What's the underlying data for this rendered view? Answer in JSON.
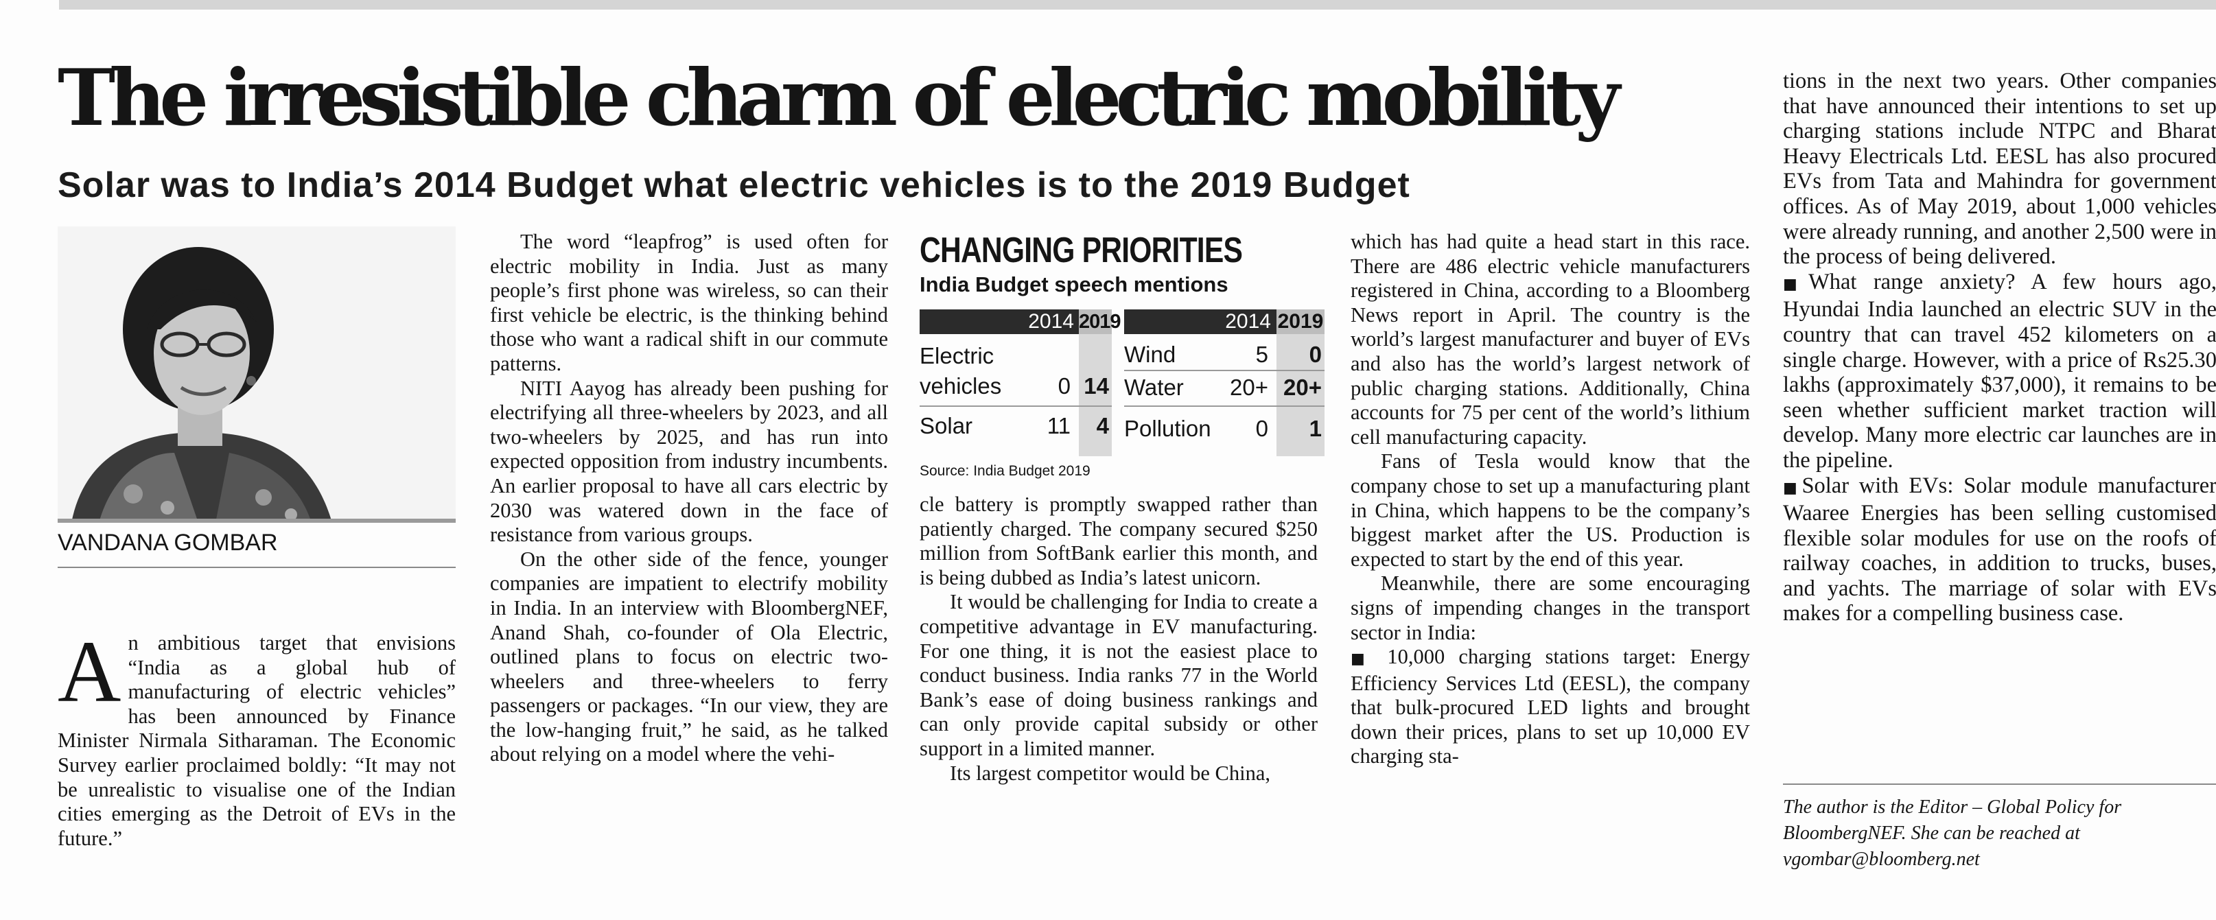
{
  "headline": "The irresistible charm of electric mobility",
  "subheadline": "Solar was to India’s 2014 Budget what electric vehicles is to the 2019 Budget",
  "byline": "VANDANA GOMBAR",
  "col1": {
    "dropcap": "A",
    "text": "n ambitious target that envisions “India as a global hub of manufacturing of electric vehicles” has been announced by Finance Minister Nirmala Sitharaman. The Economic Survey earlier proclaimed boldly: “It may not be unrealistic to visualise one of the Indian cities emerging as the Detroit of EVs in the future.”"
  },
  "col2": {
    "p1": "The word “leapfrog” is used often for electric mobility in India. Just as many people’s first phone was wireless, so can their first vehicle be electric, is the thinking behind those who want a radical shift in our commute patterns.",
    "p2": "NITI Aayog has already been pushing for electrifying all three-wheelers by 2023, and all two-wheelers by 2025, and has run into expected opposition from industry incumbents. An earlier proposal to have all cars electric by 2030 was watered down in the face of resistance from various groups.",
    "p3": "On the other side of the fence, younger companies are impatient to electrify mobility in India. In an interview with BloombergNEF, Anand Shah, co-founder of Ola Electric, outlined plans to focus on electric two-wheelers and three-wheelers to ferry passengers or packages. “In our view, they are the low-hanging fruit,” he said, as he talked about relying on a model where the vehi-"
  },
  "infobox": {
    "title": "CHANGING PRIORITIES",
    "subtitle": "India Budget speech mentions",
    "year1": "2014",
    "year2": "2019",
    "left_rows": [
      {
        "label1": "Electric",
        "label2": "vehicles",
        "v2014": "0",
        "v2019": "14"
      },
      {
        "label1": "Solar",
        "v2014": "11",
        "v2019": "4"
      }
    ],
    "right_rows": [
      {
        "label": "Wind",
        "v2014": "5",
        "v2019": "0"
      },
      {
        "label": "Water",
        "v2014": "20+",
        "v2019": "20+"
      },
      {
        "label": "Pollution",
        "v2014": "0",
        "v2019": "1"
      }
    ],
    "source": "Source: India Budget 2019"
  },
  "col3": {
    "p1": "cle battery is promptly swapped rather than patiently charged. The company secured $250 million from SoftBank earlier this month, and is being dubbed as India’s latest unicorn.",
    "p2": "It would be challenging for India to create a competitive advantage in EV manufacturing. For one thing, it is not the easiest place to conduct business. India ranks 77 in the World Bank’s ease of doing business rankings and can only provide capital subsidy or other support in a limited manner.",
    "p3": "Its largest competitor would be China,"
  },
  "col4": {
    "p1": "which has had quite a head start in this race. There are 486 electric vehicle manufacturers registered in China, according to a Bloomberg News report in April. The country is the world’s largest manufacturer and buyer of EVs and also has the world’s largest network of public charging stations. Additionally, China accounts for 75 per cent of the world’s lithium cell manufacturing capacity.",
    "p2": "Fans of Tesla would know that the company chose to set up a manufacturing plant in China, which happens to be the company’s biggest market after the US. Production is expected to start by the end of this year.",
    "p3": "Meanwhile, there are some encouraging signs of impending changes in the transport sector in India:",
    "p4": "10,000 charging stations target: Energy Efficiency Services Ltd (EESL), the company that bulk-procured LED lights and brought down their prices, plans to set up 10,000 EV charging sta-"
  },
  "col5": {
    "p1": "tions in the next two years. Other companies that have announced their intentions to set up charging stations include NTPC and Bharat Heavy Electricals Ltd. EESL has also procured EVs from Tata and Mahindra for government offices. As of May 2019, about 1,000 vehicles were already running, and another 2,500 were in the process of being delivered.",
    "p2": "What range anxiety? A few hours ago, Hyundai India launched an electric SUV in the country that can travel 452 kilometers on a single charge. However, with a price of Rs25.30 lakhs (approximately $37,000), it remains to be seen whether sufficient market traction will develop. Many more electric car launches are in the pipeline.",
    "p3": "Solar with EVs: Solar module manufacturer Waaree Energies has been selling customised flexible solar modules for use on the roofs of railway coaches, in addition to trucks, buses, and yachts. The marriage of solar with EVs makes for a compelling business case.",
    "author_note": "The author is the Editor – Global Policy for BloombergNEF. She can be reached at vgombar@bloomberg.net"
  }
}
